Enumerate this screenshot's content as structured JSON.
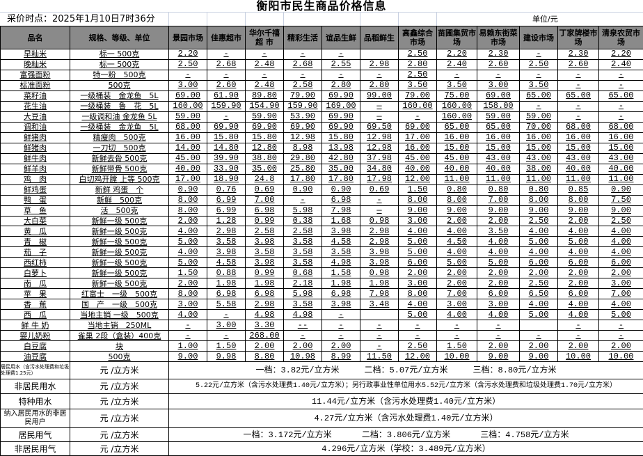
{
  "title": "衡阳市民生商品价格信息",
  "date_label": "采价时点：2025年1月10日7时36分",
  "unit_label": "单位/元",
  "headers": {
    "name": "品名",
    "spec": "规格、等级、单位",
    "markets": [
      "景园市场",
      "佳惠超市",
      "华尔千禧超 市",
      "精彩生活",
      "谊品生鲜",
      "品稻鲜生",
      "高鑫综合市场",
      "苗圃集贸市场",
      "易赖东街菜市场",
      "建设市场",
      "丁家牌楼市场",
      "清泉农贸市场"
    ]
  },
  "rows": [
    {
      "name": "早籼米",
      "spec": "标一 500克",
      "prices": [
        "2.20",
        "-",
        "-",
        "-",
        "-",
        "",
        "2.50",
        "2.20",
        "2.30",
        "-",
        "2.30",
        "2.20"
      ]
    },
    {
      "name": "晚籼米",
      "spec": "标一 500克",
      "prices": [
        "2.50",
        "2.68",
        "2.48",
        "2.68",
        "2.55",
        "2.98",
        "2.80",
        "2.40",
        "2.60",
        "2.50",
        "2.60",
        "2.40"
      ]
    },
    {
      "name": "富强面粉",
      "spec": "特一粉　500克",
      "prices": [
        "-",
        "-",
        "-",
        "-",
        "-",
        "-",
        "2.50",
        "-",
        "-",
        "-",
        "-",
        "-"
      ]
    },
    {
      "name": "标准面粉",
      "spec": "500克",
      "prices": [
        "3.00",
        "2.60",
        "2.48",
        "2.58",
        "2.80",
        "2.80",
        "3.50",
        "3.50",
        "3.00",
        "3.50",
        "-",
        "-"
      ]
    },
    {
      "name": "菜籽油",
      "spec": "一级桶装　金龙鱼　5L",
      "prices": [
        "69.00",
        "61.90",
        "89.80",
        "79.90",
        "69.90",
        "99.00",
        "79.00",
        "75.00",
        "69.00",
        "65.00",
        "65.00",
        "65.00"
      ]
    },
    {
      "name": "花生油",
      "spec": "一级桶装　鲁　花　5L",
      "prices": [
        "160.00",
        "159.90",
        "154.90",
        "159.90",
        "169.00",
        "—",
        "160.00",
        "160.00",
        "158.00",
        "-",
        "-",
        "-"
      ]
    },
    {
      "name": "大豆油",
      "spec": "一级调和油 金龙鱼 5L",
      "prices": [
        "59.00",
        "-",
        "59.90",
        "53.90",
        "69.90",
        "—",
        "-",
        "160.00",
        "59.00",
        "59.00",
        "-",
        "-"
      ]
    },
    {
      "name": "调和油",
      "spec": "一级桶装　金龙鱼　5L",
      "prices": [
        "68.00",
        "69.90",
        "69.90",
        "69.90",
        "69.90",
        "69.50",
        "69.00",
        "65.00",
        "65.00",
        "70.00",
        "68.00",
        "68.00"
      ]
    },
    {
      "name": "鲜猪肉",
      "spec": "精瘦肉　500克",
      "prices": [
        "16.00",
        "15.80",
        "15.80",
        "12.98",
        "15.80",
        "12.98",
        "17.00",
        "16.00",
        "16.00",
        "16.00",
        "16.00",
        "16.00"
      ]
    },
    {
      "name": "鲜猪肉",
      "spec": "一刀切　500克",
      "prices": [
        "14.00",
        "14.80",
        "12.80",
        "8.98",
        "13.98",
        "12.98",
        "16.00",
        "15.00",
        "15.00",
        "15.00",
        "15.00",
        "15.00"
      ]
    },
    {
      "name": "鲜牛肉",
      "spec": "新鲜去骨 500克",
      "prices": [
        "45.00",
        "39.90",
        "38.80",
        "29.80",
        "42.80",
        "37.98",
        "45.00",
        "45.00",
        "43.00",
        "43.00",
        "43.00",
        "43.00"
      ]
    },
    {
      "name": "鲜羊肉",
      "spec": "新鲜带骨 500克",
      "prices": [
        "40.00",
        "33.90",
        "35.00",
        "25.80",
        "35.00",
        "34.80",
        "40.00",
        "40.00",
        "40.00",
        "38.00",
        "40.00",
        "40.00"
      ]
    },
    {
      "name": "鸡　肉",
      "spec": "白切鸡开膛 上等 500克",
      "prices": [
        "17.00",
        "18.90",
        "24.8",
        "17.80",
        "17.80",
        "17.98",
        "12.00",
        "11.00",
        "11.00",
        "11.00",
        "11.00",
        "11.00"
      ]
    },
    {
      "name": "鲜鸡蛋",
      "spec": "新鲜 鸡蛋　个",
      "prices": [
        "0.90",
        "0.76",
        "0.69",
        "0.90",
        "0.90",
        "0.69",
        "1.50",
        "0.80",
        "0.80",
        "0.80",
        "0.85",
        "0.90"
      ]
    },
    {
      "name": "鸭　蛋",
      "spec": "新鲜　500克",
      "prices": [
        "8.00",
        "6.99",
        "7.00",
        "-",
        "6.98",
        "-",
        "8.00",
        "8.00",
        "7.00",
        "8.00",
        "8.00",
        "7.50"
      ]
    },
    {
      "name": "草　鱼",
      "spec": "活　500克",
      "prices": [
        "8.00",
        "6.99",
        "6.98",
        "5.98",
        "7.98",
        "—",
        "9.00",
        "9.00",
        "9.00",
        "9.00",
        "9.00",
        "9.00"
      ]
    },
    {
      "name": "大白菜",
      "spec": "新鲜一级 500克",
      "prices": [
        "2.00",
        "1.28",
        "0.99",
        "0.38",
        "1.68",
        "0.98",
        "3.00",
        "2.00",
        "2.00",
        "2.50",
        "2.00",
        "2.50"
      ]
    },
    {
      "name": "黄　瓜",
      "spec": "新鲜一级 500克",
      "prices": [
        "4.00",
        "2.98",
        "2.58",
        "2.58",
        "3.98",
        "2.98",
        "4.00",
        "4.00",
        "3.50",
        "4.00",
        "4.00",
        "4.00"
      ]
    },
    {
      "name": "青　椒",
      "spec": "新鲜一级 500克",
      "prices": [
        "5.00",
        "3.58",
        "3.98",
        "3.58",
        "4.58",
        "2.98",
        "5.00",
        "4.50",
        "4.00",
        "5.00",
        "5.00",
        "4.00"
      ]
    },
    {
      "name": "茄　子",
      "spec": "新鲜一级 500克",
      "prices": [
        "4.00",
        "3.98",
        "3.58",
        "3.58",
        "3.58",
        "3.98",
        "5.00",
        "4.00",
        "4.00",
        "4.00",
        "4.00",
        "4.00"
      ]
    },
    {
      "name": "西红柿",
      "spec": "新鲜一级 500克",
      "prices": [
        "5.00",
        "4.58",
        "3.98",
        "3.58",
        "4.98",
        "3.98",
        "6.00",
        "5.00",
        "5.00",
        "6.00",
        "6.00",
        "6.00"
      ]
    },
    {
      "name": "白萝卜",
      "spec": "新鲜一级 500克",
      "prices": [
        "1.50",
        "0.88",
        "0.99",
        "0.68",
        "1.58",
        "0.98",
        "2.00",
        "2.00",
        "2.00",
        "2.00",
        "2.00",
        "2.00"
      ]
    },
    {
      "name": "南　瓜",
      "spec": "新鲜一级 500克",
      "prices": [
        "2.00",
        "1.98",
        "1.98",
        "2.18",
        "1.98",
        "1.98",
        "3.00",
        "2.00",
        "2.00",
        "2.50",
        "2.00",
        "3.00"
      ]
    },
    {
      "name": "苹　果",
      "spec": "红富士　一级　500克",
      "prices": [
        "8.00",
        "6.98",
        "6.98",
        "5.98",
        "6.98",
        "7.98",
        "8.00",
        "7.00",
        "6.00",
        "6.50",
        "6.00",
        "7.00"
      ]
    },
    {
      "name": "香　蕉",
      "spec": "国　产　一级　500克",
      "prices": [
        "3.00",
        "5.58",
        "2.98",
        "3.58",
        "3.98",
        "3.48",
        "4.00",
        "3.00",
        "3.00",
        "4.00",
        "4.00",
        "4.00"
      ]
    },
    {
      "name": "西　瓜",
      "spec": "当地主销 一级　500克",
      "prices": [
        "4.00",
        "-",
        "4.98",
        "4.98",
        "-",
        "",
        "5.00",
        "4.00",
        "4.00",
        "5.00",
        "4.00",
        "5.00"
      ]
    },
    {
      "name": "鲜 牛 奶",
      "spec": "当地主销　250ML",
      "prices": [
        "-",
        "3.00",
        "3.30",
        "--",
        "-",
        "-",
        "-",
        "-",
        "-",
        "",
        "-",
        "-"
      ]
    },
    {
      "name": "婴儿奶粉",
      "spec": "雀巢 2段（盒装）400克",
      "prices": [
        "-",
        "-",
        "268.00",
        "-",
        "-",
        "-",
        "-",
        "-",
        "-",
        "-",
        "-",
        "-"
      ]
    },
    {
      "name": "白豆腐",
      "spec": "块",
      "prices": [
        "1.00",
        "1.50",
        "2.00",
        "2.00",
        "2.00",
        "-",
        "2.50",
        "1.50",
        "2.00",
        "2.00",
        "2.00",
        "2.00"
      ]
    },
    {
      "name": "油豆腐",
      "spec": "500克",
      "prices": [
        "9.00",
        "9.98",
        "8.80",
        "10.98",
        "8.99",
        "11.50",
        "12.00",
        "10.00",
        "9.00",
        "9.00",
        "10.00",
        "10.00"
      ]
    }
  ],
  "utilities": [
    {
      "name": "居民用水（含污水处理费和垃圾处理费1.25元）",
      "unit": "元 /立方米",
      "value": "一档：3.82元/立方米     二档：5.07元/立方米     三档：8.80元/立方米",
      "small": true
    },
    {
      "name": "非居民用水",
      "unit": "元 /立方米",
      "value": "5.22元/立方米（含污水处理费1.40元/立方米）；另行政事业性单位用水5.52元/立方米（含污水处理费和垃圾处理费1.70元/立方米）",
      "small": false
    },
    {
      "name": "特种用水",
      "unit": "元 /立方米",
      "value": "11.44元/立方米（含污水处理费1.40元/立方米）",
      "small": false
    },
    {
      "name": "纳入居民用水的非居民用户",
      "unit": "元 /立方米",
      "value": "4.27元/立方米（含污水处理费1.40元/立方米）",
      "small": false
    },
    {
      "name": "居民用气",
      "unit": "元 /立方米",
      "value": "一档：3.172元/立方米      二档：3.806元/立方米      三档：4.758元/立方米",
      "small": false
    },
    {
      "name": "非居民用气",
      "unit": "元 /立方米",
      "value": "4.296元/立方米（学校：3.489元/立方米）",
      "small": false
    }
  ]
}
